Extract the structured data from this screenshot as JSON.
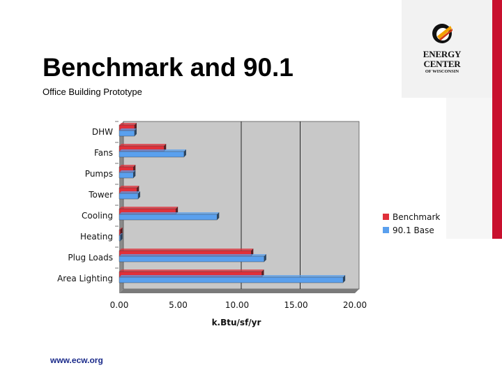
{
  "slide": {
    "title": "Benchmark and 90.1",
    "subtitle": "Office Building Prototype",
    "footer": "www.ecw.org"
  },
  "logo": {
    "name": "ENERGY CENTER",
    "sub": "OF WISCONSIN"
  },
  "colors": {
    "benchmark": "#e0303a",
    "base": "#5aa0ee",
    "plot_bg": "#c8c8c8",
    "accent": "#c8102e"
  },
  "chart_data": {
    "type": "bar",
    "orientation": "horizontal",
    "categories": [
      "DHW",
      "Fans",
      "Pumps",
      "Tower",
      "Cooling",
      "Heating",
      "Plug Loads",
      "Area Lighting"
    ],
    "series": [
      {
        "name": "Benchmark",
        "values": [
          1.3,
          3.8,
          1.2,
          1.5,
          4.8,
          0.1,
          11.2,
          12.1
        ]
      },
      {
        "name": "90.1 Base",
        "values": [
          1.3,
          5.5,
          1.2,
          1.6,
          8.3,
          0.1,
          12.3,
          19.0
        ]
      }
    ],
    "xlabel": "k.Btu/sf/yr",
    "xlim": [
      0,
      20
    ],
    "xticks": [
      "0.00",
      "5.00",
      "10.00",
      "15.00",
      "20.00"
    ],
    "gridlines_at": [
      10,
      15
    ],
    "legend": "right"
  }
}
